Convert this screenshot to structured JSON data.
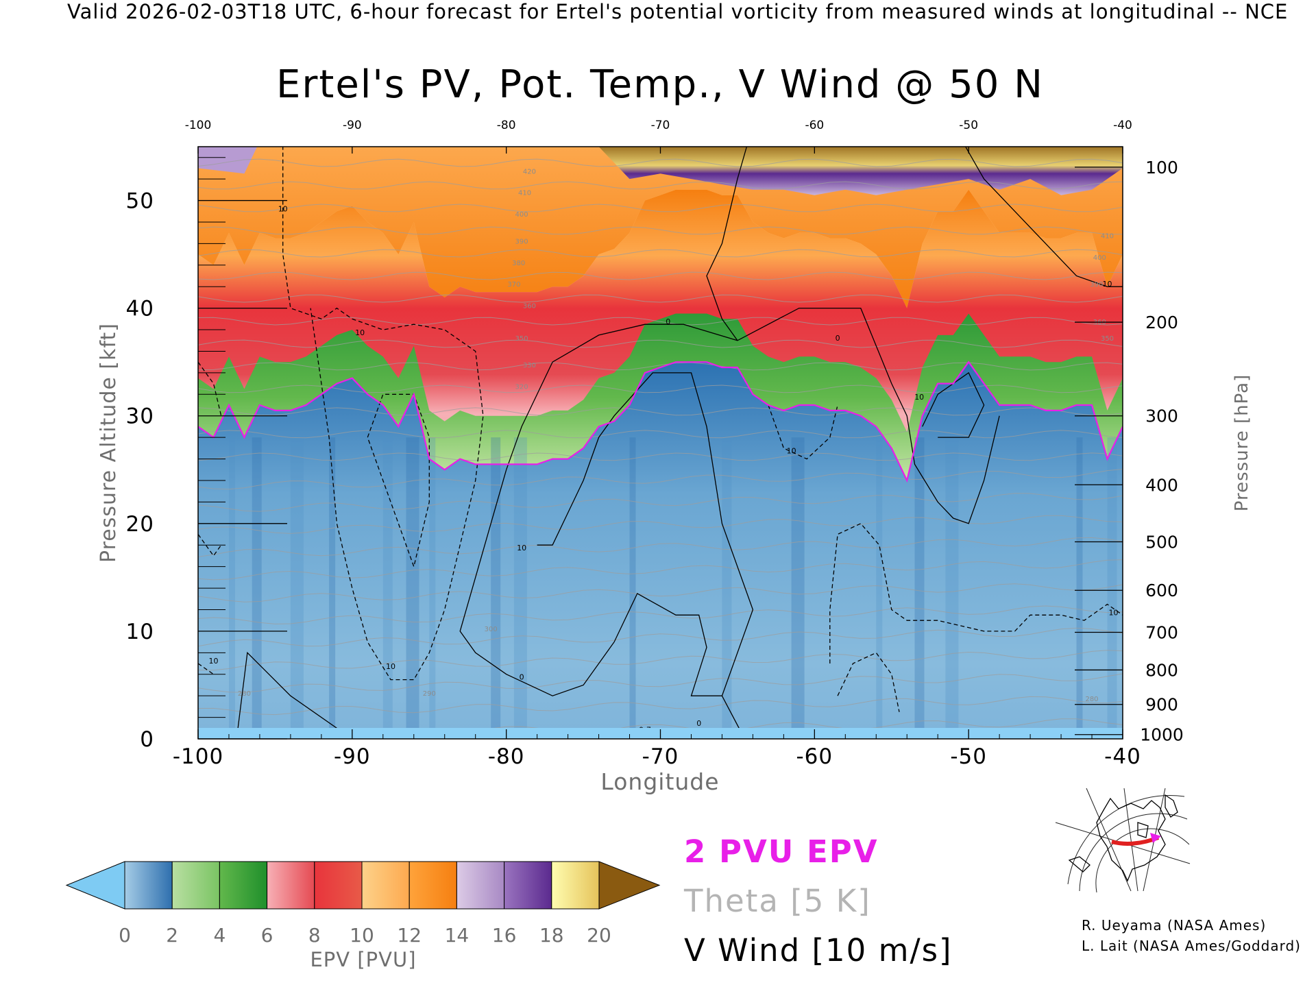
{
  "valid_line": "Valid 2026-02-03T18 UTC, 6-hour forecast for Ertel's potential vorticity from measured winds at longitudinal -- NCE",
  "chart_data": {
    "type": "heatmap",
    "title": "Ertel's PV, Pot. Temp., V Wind @ 50 N",
    "xlabel": "Longitude",
    "ylabel_left": "Pressure Altitude [kft]",
    "ylabel_right": "Pressure [hPa]",
    "xlim": [
      -100,
      -40
    ],
    "ylim": [
      0,
      55
    ],
    "x_ticks": [
      "-100",
      "-90",
      "-80",
      "-70",
      "-60",
      "-50",
      "-40"
    ],
    "x_tick_values": [
      -100,
      -90,
      -80,
      -70,
      -60,
      -50,
      -40
    ],
    "y_ticks": [
      "0",
      "10",
      "20",
      "30",
      "40",
      "50"
    ],
    "y_tick_values": [
      0,
      10,
      20,
      30,
      40,
      50
    ],
    "pressure_ticks": [
      {
        "label": "100",
        "kft": 53.1
      },
      {
        "label": "200",
        "kft": 38.7
      },
      {
        "label": "300",
        "kft": 30.0
      },
      {
        "label": "400",
        "kft": 23.6
      },
      {
        "label": "500",
        "kft": 18.3
      },
      {
        "label": "600",
        "kft": 13.8
      },
      {
        "label": "700",
        "kft": 9.9
      },
      {
        "label": "800",
        "kft": 6.4
      },
      {
        "label": "900",
        "kft": 3.2
      },
      {
        "label": "1000",
        "kft": 0.4
      }
    ],
    "tropopause_2pvu_kft": {
      "x": [
        -100,
        -99,
        -98,
        -97,
        -96,
        -95,
        -94,
        -93,
        -92,
        -91,
        -90,
        -89,
        -88,
        -87,
        -86,
        -85,
        -84,
        -83,
        -82,
        -81,
        -80,
        -79,
        -78,
        -77,
        -76,
        -75,
        -74,
        -73,
        -72,
        -71,
        -70,
        -69,
        -68,
        -67,
        -66,
        -65,
        -64,
        -63,
        -62,
        -61,
        -60,
        -59,
        -58,
        -57,
        -56,
        -55,
        -54,
        -53,
        -52,
        -51,
        -50,
        -49,
        -48,
        -47,
        -46,
        -45,
        -44,
        -43,
        -42,
        -41,
        -40
      ],
      "y": [
        29,
        28,
        31,
        28,
        31,
        30.5,
        30.5,
        31,
        32,
        33,
        33.5,
        32,
        31,
        29,
        32,
        26,
        25,
        26,
        25.5,
        25.5,
        25.5,
        25.5,
        25.5,
        26,
        26,
        27,
        29,
        29.5,
        31,
        34,
        34.5,
        35,
        35,
        35,
        34.5,
        34.5,
        32,
        31,
        30.5,
        31,
        31,
        30.5,
        30.5,
        30,
        29,
        27,
        24,
        30,
        33,
        33,
        35,
        33,
        31,
        31,
        31,
        30.5,
        30.5,
        31,
        31,
        26,
        29
      ]
    },
    "v_wind_contours": [
      {
        "value": "0",
        "dashed": false,
        "points": [
          [
            -97.5,
            0
          ],
          [
            -96.8,
            8
          ],
          [
            -94,
            4
          ],
          [
            -91,
            1
          ],
          [
            -90.5,
            0
          ]
        ]
      },
      {
        "value": "0",
        "dashed": false,
        "points": [
          [
            -80,
            25
          ],
          [
            -79,
            29
          ],
          [
            -77,
            35
          ],
          [
            -74,
            37.5
          ],
          [
            -71,
            38.5
          ],
          [
            -68.5,
            38.5
          ],
          [
            -65,
            37
          ],
          [
            -61,
            40
          ],
          [
            -57,
            40
          ],
          [
            -55,
            33
          ],
          [
            -54,
            30
          ],
          [
            -53.5,
            25.5
          ],
          [
            -52,
            22
          ],
          [
            -51,
            20.5
          ],
          [
            -50,
            20
          ],
          [
            -49,
            24
          ],
          [
            -48,
            30
          ]
        ]
      },
      {
        "value": "0",
        "dashed": false,
        "points": [
          [
            -80,
            25
          ],
          [
            -81,
            20
          ],
          [
            -82,
            15
          ],
          [
            -83,
            10
          ],
          [
            -82,
            8
          ],
          [
            -80,
            6
          ],
          [
            -77,
            4
          ],
          [
            -75,
            5
          ],
          [
            -73,
            9
          ],
          [
            -71.5,
            13.5
          ],
          [
            -69,
            11.5
          ],
          [
            -67.5,
            11.5
          ],
          [
            -67,
            8.5
          ],
          [
            -68,
            4
          ],
          [
            -66,
            4
          ],
          [
            -64,
            12
          ],
          [
            -66,
            20
          ],
          [
            -67,
            29
          ],
          [
            -68,
            34
          ],
          [
            -70.5,
            34
          ],
          [
            -73,
            30
          ],
          [
            -74,
            28
          ],
          [
            -75,
            24
          ],
          [
            -76,
            21
          ],
          [
            -77,
            18
          ],
          [
            -78,
            18
          ]
        ]
      },
      {
        "value": "0",
        "dashed": false,
        "points": [
          [
            -65,
            0
          ],
          [
            -64.9,
            1
          ],
          [
            -66,
            4
          ]
        ]
      },
      {
        "value": "10",
        "dashed": false,
        "points": [
          [
            -64,
            57
          ],
          [
            -65,
            52
          ],
          [
            -66,
            46
          ],
          [
            -67,
            43
          ],
          [
            -66,
            39
          ],
          [
            -65,
            37
          ]
        ]
      },
      {
        "value": "10",
        "dashed": false,
        "points": [
          [
            -51,
            57
          ],
          [
            -49,
            52
          ],
          [
            -47,
            49
          ],
          [
            -45,
            46
          ],
          [
            -43,
            43
          ],
          [
            -41,
            42
          ],
          [
            -40,
            42
          ]
        ]
      },
      {
        "value": "10",
        "dashed": false,
        "points": [
          [
            -53,
            29
          ],
          [
            -52,
            32
          ],
          [
            -50,
            34
          ],
          [
            -49,
            31
          ],
          [
            -50,
            28
          ],
          [
            -52,
            28
          ]
        ]
      },
      {
        "value": "-10",
        "dashed": true,
        "points": [
          [
            -94.5,
            57
          ],
          [
            -94.5,
            52
          ],
          [
            -94.5,
            45
          ],
          [
            -94,
            40
          ],
          [
            -92,
            39
          ],
          [
            -91,
            40
          ],
          [
            -90,
            39
          ],
          [
            -88,
            38
          ],
          [
            -86,
            38.5
          ],
          [
            -84,
            38
          ],
          [
            -82,
            36
          ],
          [
            -81.5,
            30
          ],
          [
            -82,
            24
          ],
          [
            -83,
            18
          ],
          [
            -84,
            12
          ],
          [
            -85,
            8
          ],
          [
            -86,
            5.5
          ],
          [
            -87.5,
            5.5
          ],
          [
            -89,
            9
          ],
          [
            -90,
            14
          ],
          [
            -91,
            20
          ],
          [
            -91.5,
            28
          ],
          [
            -92,
            33
          ],
          [
            -92.5,
            38
          ],
          [
            -92.7,
            40
          ]
        ]
      },
      {
        "value": "-10",
        "dashed": true,
        "points": [
          [
            -89,
            28
          ],
          [
            -88,
            32
          ],
          [
            -86,
            32
          ],
          [
            -85,
            28
          ],
          [
            -85,
            22
          ],
          [
            -86,
            16
          ],
          [
            -87,
            20
          ],
          [
            -88,
            24
          ],
          [
            -89,
            28
          ]
        ]
      },
      {
        "value": "-10",
        "dashed": true,
        "points": [
          [
            -100,
            35
          ],
          [
            -99,
            33
          ],
          [
            -98.5,
            30
          ]
        ]
      },
      {
        "value": "-10",
        "dashed": true,
        "points": [
          [
            -100,
            19
          ],
          [
            -99,
            17
          ],
          [
            -98.5,
            18
          ]
        ]
      },
      {
        "value": "-10",
        "dashed": true,
        "points": [
          [
            -100,
            7
          ],
          [
            -99,
            6
          ]
        ]
      },
      {
        "value": "-10",
        "dashed": true,
        "points": [
          [
            -63,
            31
          ],
          [
            -62,
            27
          ],
          [
            -60.5,
            26
          ],
          [
            -59,
            28
          ],
          [
            -58.5,
            31
          ]
        ]
      },
      {
        "value": "-10",
        "dashed": true,
        "points": [
          [
            -59,
            7
          ],
          [
            -59,
            12
          ],
          [
            -58.5,
            19
          ],
          [
            -57,
            20
          ],
          [
            -55.8,
            18
          ],
          [
            -55,
            12
          ],
          [
            -54,
            11
          ],
          [
            -52,
            11
          ],
          [
            -49,
            10
          ],
          [
            -47,
            10
          ],
          [
            -46,
            11.5
          ],
          [
            -44,
            11.5
          ],
          [
            -42.5,
            11
          ],
          [
            -41,
            12.5
          ],
          [
            -40,
            11.5
          ]
        ]
      },
      {
        "value": "-10",
        "dashed": true,
        "points": [
          [
            -58.5,
            4
          ],
          [
            -57.5,
            7
          ],
          [
            -56,
            8
          ],
          [
            -55,
            6
          ],
          [
            -54.5,
            2.5
          ]
        ]
      }
    ],
    "contour_labels": [
      {
        "text": "10",
        "x": -94.5,
        "y": 49
      },
      {
        "text": "10",
        "x": -89.5,
        "y": 37.5
      },
      {
        "text": "0",
        "x": -69.5,
        "y": 38.5
      },
      {
        "text": "0",
        "x": -58.5,
        "y": 37
      },
      {
        "text": "10",
        "x": -53.2,
        "y": 31.5
      },
      {
        "text": "10",
        "x": -41,
        "y": 42
      },
      {
        "text": "10",
        "x": -40.6,
        "y": 11.5
      },
      {
        "text": "10",
        "x": -79,
        "y": 17.5
      },
      {
        "text": "10",
        "x": -61.5,
        "y": 26.5
      },
      {
        "text": "10",
        "x": -87.5,
        "y": 6.5
      },
      {
        "text": "0",
        "x": -79,
        "y": 5.5
      },
      {
        "text": "10",
        "x": -99,
        "y": 7
      },
      {
        "text": "0-7",
        "x": -71,
        "y": 0.6
      },
      {
        "text": "0",
        "x": -67.5,
        "y": 1.2
      }
    ],
    "theta_labels": [
      {
        "text": "420",
        "x": -78.5,
        "y": 52.5
      },
      {
        "text": "410",
        "x": -78.8,
        "y": 50.5
      },
      {
        "text": "400",
        "x": -79,
        "y": 48.5
      },
      {
        "text": "390",
        "x": -79,
        "y": 46
      },
      {
        "text": "380",
        "x": -79.2,
        "y": 44
      },
      {
        "text": "370",
        "x": -79.5,
        "y": 42
      },
      {
        "text": "360",
        "x": -78.5,
        "y": 40
      },
      {
        "text": "350",
        "x": -79,
        "y": 37
      },
      {
        "text": "330",
        "x": -78.5,
        "y": 34.5
      },
      {
        "text": "320",
        "x": -79,
        "y": 32.5
      },
      {
        "text": "300",
        "x": -81,
        "y": 10
      },
      {
        "text": "290",
        "x": -85,
        "y": 4
      },
      {
        "text": "280",
        "x": -97,
        "y": 4
      },
      {
        "text": "410",
        "x": -41,
        "y": 46.5
      },
      {
        "text": "400",
        "x": -41.5,
        "y": 44.5
      },
      {
        "text": "390",
        "x": -41.7,
        "y": 42
      },
      {
        "text": "360",
        "x": -41.5,
        "y": 38.5
      },
      {
        "text": "350",
        "x": -41,
        "y": 37
      },
      {
        "text": "280",
        "x": -42,
        "y": 3.5
      }
    ],
    "colorbar": {
      "label": "EPV [PVU]",
      "ticks": [
        "0",
        "2",
        "4",
        "6",
        "8",
        "10",
        "12",
        "14",
        "16",
        "18",
        "20"
      ],
      "under_color": "#7ecbf3",
      "over_color": "#8a5a10",
      "segments": [
        {
          "from": "#a5cce6",
          "to": "#2e6fae"
        },
        {
          "from": "#b9dfa2",
          "to": "#7ac463"
        },
        {
          "from": "#62b84c",
          "to": "#1f8f2b"
        },
        {
          "from": "#f7b0b6",
          "to": "#e54a52"
        },
        {
          "from": "#e8343c",
          "to": "#e85a48"
        },
        {
          "from": "#fdd28a",
          "to": "#fda94f"
        },
        {
          "from": "#ffa33b",
          "to": "#f57f10"
        },
        {
          "from": "#dccbe6",
          "to": "#a889c4"
        },
        {
          "from": "#9a74bf",
          "to": "#5b2a8f"
        },
        {
          "from": "#fffdb0",
          "to": "#e5c35b"
        }
      ]
    },
    "legend": [
      {
        "text": "2 PVU EPV",
        "color": "#e81fe8"
      },
      {
        "text": "Theta [5 K]",
        "color": "#b4b4b4"
      },
      {
        "text": "V Wind [10 m/s]",
        "color": "#000000"
      }
    ]
  },
  "credits": [
    "R. Ueyama (NASA Ames)",
    "L. Lait (NASA Ames/Goddard)"
  ]
}
